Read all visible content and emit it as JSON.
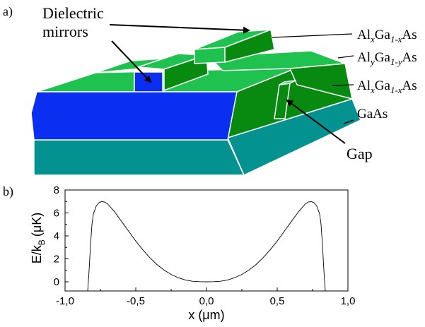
{
  "panel_a": {
    "label": "a)",
    "labels": {
      "dielectric_line1": "Dielectric",
      "dielectric_line2": "mirrors",
      "top_layer": {
        "a": "Al",
        "x": "x",
        "b": "Ga",
        "y": "1-x",
        "c": "As"
      },
      "middle_layer": {
        "a": "Al",
        "x": "y",
        "b": "Ga",
        "y": "1-y",
        "c": "As"
      },
      "bottom_layer": {
        "a": "Al",
        "x": "x",
        "b": "Ga",
        "y": "1-x",
        "c": "As"
      },
      "substrate": "GaAs",
      "gap": "Gap"
    },
    "colors": {
      "light_green": "#1fc24e",
      "dark_green": "#088a10",
      "teal": "#03928f",
      "blue": "#0a2ff0"
    }
  },
  "panel_b": {
    "label": "b)",
    "ylabel_main": "E/k",
    "ylabel_sub": "B",
    "ylabel_unit": "(μK)",
    "xlabel": "x (μm)"
  },
  "chart_data": {
    "type": "line",
    "xlim": [
      -1.0,
      1.0
    ],
    "ylim": [
      -0.8,
      8.0
    ],
    "xticks": [
      -1.0,
      -0.5,
      0.0,
      0.5,
      1.0
    ],
    "xtick_labels": [
      "-1,0",
      "-0,5",
      "0,0",
      "0,5",
      "1,0"
    ],
    "yticks": [
      0,
      2,
      4,
      6,
      8
    ],
    "ytick_labels": [
      "0",
      "2",
      "4",
      "6",
      "8"
    ],
    "series": [
      {
        "x": [
          -0.84,
          -0.83,
          -0.82,
          -0.81,
          -0.8,
          -0.78,
          -0.76,
          -0.74,
          -0.72,
          -0.7,
          -0.65,
          -0.6,
          -0.55,
          -0.5,
          -0.45,
          -0.4,
          -0.35,
          -0.3,
          -0.25,
          -0.2,
          -0.15,
          -0.1,
          -0.05,
          0.0,
          0.05,
          0.1,
          0.15,
          0.2,
          0.25,
          0.3,
          0.35,
          0.4,
          0.45,
          0.5,
          0.55,
          0.6,
          0.65,
          0.7,
          0.72,
          0.74,
          0.76,
          0.78,
          0.8,
          0.81,
          0.82,
          0.83,
          0.84
        ],
        "y": [
          -0.8,
          1.0,
          3.2,
          5.0,
          5.9,
          6.6,
          6.9,
          7.0,
          6.95,
          6.8,
          6.1,
          5.25,
          4.4,
          3.55,
          2.78,
          2.1,
          1.5,
          1.02,
          0.64,
          0.36,
          0.16,
          0.05,
          0.01,
          0.0,
          0.01,
          0.05,
          0.16,
          0.36,
          0.64,
          1.02,
          1.5,
          2.1,
          2.78,
          3.55,
          4.4,
          5.25,
          6.1,
          6.8,
          6.95,
          7.0,
          6.9,
          6.6,
          5.9,
          5.0,
          3.2,
          1.0,
          -0.8
        ]
      }
    ]
  }
}
